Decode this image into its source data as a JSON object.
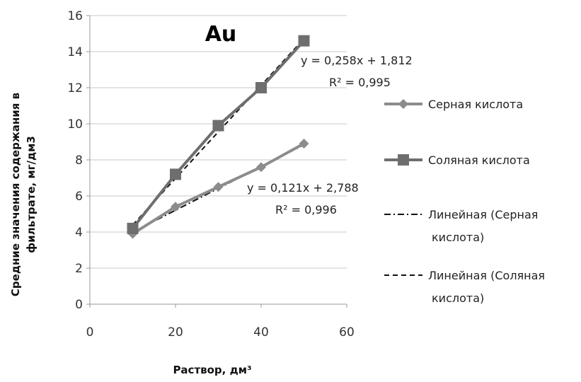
{
  "chart_data": {
    "type": "line",
    "title": "Au",
    "xlabel": "Раствор, дм³",
    "ylabel_line1": "Средние значения содержания в",
    "ylabel_line2": "фильтрате, мг/дм3",
    "xlim": [
      0,
      60
    ],
    "ylim": [
      0,
      16
    ],
    "xticks": [
      0,
      20,
      40,
      60
    ],
    "yticks": [
      0,
      2,
      4,
      6,
      8,
      10,
      12,
      14,
      16
    ],
    "x": [
      10,
      20,
      30,
      40,
      50
    ],
    "grid": "horizontal",
    "legend_position": "right",
    "series": [
      {
        "name": "Серная кислота",
        "marker": "diamond",
        "color": "#8c8c8c",
        "values": [
          3.9,
          5.4,
          6.5,
          7.6,
          8.9
        ]
      },
      {
        "name": "Соляная кислота",
        "marker": "square",
        "color": "#6e6e6e",
        "values": [
          4.2,
          7.2,
          9.9,
          12.0,
          14.6
        ]
      }
    ],
    "trendlines": [
      {
        "name_line1": "Линейная (Серная",
        "name_line2": "кислота)",
        "style": "dash-dot",
        "slope": 0.121,
        "intercept": 2.788,
        "equation": "y = 0,121x + 2,788",
        "r2": "R² = 0,996"
      },
      {
        "name_line1": "Линейная (Соляная",
        "name_line2": "кислота)",
        "style": "dashed",
        "slope": 0.258,
        "intercept": 1.812,
        "equation": "y = 0,258x + 1,812",
        "r2": "R² = 0,995"
      }
    ]
  }
}
